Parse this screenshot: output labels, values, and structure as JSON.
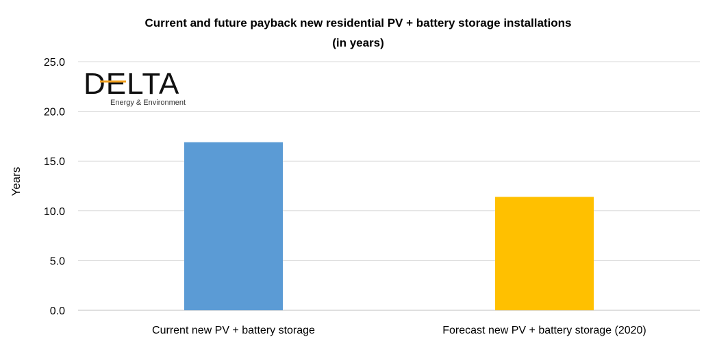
{
  "chart_data": {
    "type": "bar",
    "title_line1": "Current and future payback new residential PV + battery storage installations",
    "title_line2": "(in years)",
    "xlabel": "",
    "ylabel": "Years",
    "ylim": [
      0,
      25
    ],
    "yticks": [
      "0.0",
      "5.0",
      "10.0",
      "15.0",
      "20.0",
      "25.0"
    ],
    "ytick_values": [
      0,
      5,
      10,
      15,
      20,
      25
    ],
    "categories": [
      "Current new PV + battery storage",
      "Forecast new PV + battery storage (2020)"
    ],
    "values": [
      16.9,
      11.4
    ],
    "bar_colors": [
      "#5b9bd5",
      "#ffc000"
    ],
    "grid": true,
    "legend": "none"
  },
  "logo": {
    "name": "DELTA",
    "subtitle": "Energy & Environment",
    "accent_color": "#f0a020"
  }
}
